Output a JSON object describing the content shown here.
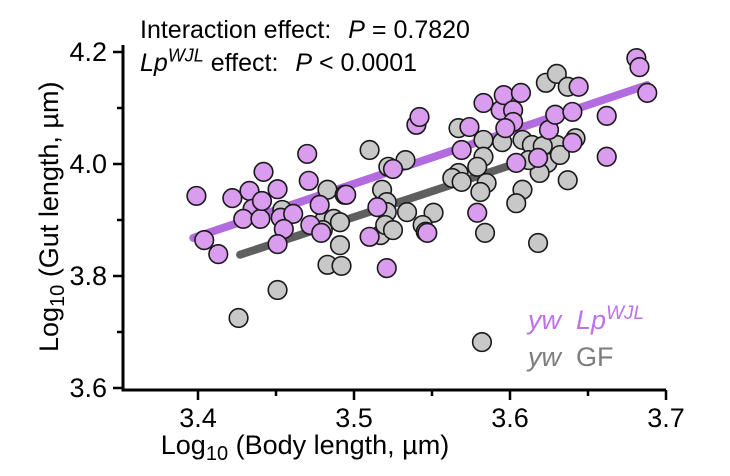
{
  "annotation": {
    "line1": {
      "pre": "Interaction effect:",
      "p": "P",
      "rest": "= 0.7820"
    },
    "line2": {
      "gene": "Lp",
      "sup": "WJL",
      "mid": "effect:",
      "p": "P",
      "rest": "< 0.0001"
    }
  },
  "legend": {
    "entries": [
      {
        "prefix": "yw",
        "main": "Lp",
        "sup": "WJL",
        "color": "#bd72ea"
      },
      {
        "prefix": "yw",
        "main": "GF",
        "sup": "",
        "color": "#7d7d7d"
      }
    ]
  },
  "x_axis_label": {
    "word": "Log",
    "sub": "10",
    "rest": " (Body length, µm)"
  },
  "y_axis_label": {
    "word": "Log",
    "sub": "10",
    "rest": " (Gut length, µm)"
  },
  "chart_data": {
    "type": "scatter",
    "title": "",
    "xlabel": "Log10 (Body length, µm)",
    "ylabel": "Log10 (Gut length, µm)",
    "xlim": [
      3.35,
      3.7
    ],
    "ylim": [
      3.6,
      4.2
    ],
    "x_major_ticks": [
      3.4,
      3.5,
      3.6,
      3.7
    ],
    "x_minor_ticks": [
      3.45,
      3.55,
      3.65
    ],
    "y_major_ticks": [
      3.6,
      3.8,
      4.0,
      4.2
    ],
    "y_minor_ticks": [
      3.7,
      3.9,
      4.1
    ],
    "grid": false,
    "legend_position": "lower right",
    "stats": {
      "interaction_effect_p": "0.7820",
      "lpwjl_effect_p": "< 0.0001"
    },
    "series": [
      {
        "name": "yw LpWJL",
        "marker_fill": "#d99cee",
        "marker_edge": "#1a1a1a",
        "line_color": "#b26ce0",
        "trend": {
          "x1": 3.397,
          "y1": 3.868,
          "x2": 3.688,
          "y2": 4.141
        },
        "points": [
          [
            3.399,
            3.943
          ],
          [
            3.404,
            3.864
          ],
          [
            3.413,
            3.839
          ],
          [
            3.422,
            3.939
          ],
          [
            3.433,
            3.952
          ],
          [
            3.442,
            3.986
          ],
          [
            3.435,
            3.92
          ],
          [
            3.429,
            3.902
          ],
          [
            3.44,
            3.902
          ],
          [
            3.451,
            3.955
          ],
          [
            3.441,
            3.934
          ],
          [
            3.453,
            3.904
          ],
          [
            3.461,
            3.911
          ],
          [
            3.455,
            3.884
          ],
          [
            3.451,
            3.857
          ],
          [
            3.47,
            4.018
          ],
          [
            3.471,
            3.97
          ],
          [
            3.478,
            3.927
          ],
          [
            3.472,
            3.891
          ],
          [
            3.479,
            3.877
          ],
          [
            3.495,
            3.945
          ],
          [
            3.515,
            3.923
          ],
          [
            3.51,
            3.87
          ],
          [
            3.521,
            3.814
          ],
          [
            3.525,
            3.991
          ],
          [
            3.54,
            4.07
          ],
          [
            3.542,
            4.084
          ],
          [
            3.547,
            3.877
          ],
          [
            3.569,
            4.025
          ],
          [
            3.574,
            4.066
          ],
          [
            3.579,
            3.913
          ],
          [
            3.583,
            4.109
          ],
          [
            3.594,
            4.096
          ],
          [
            3.596,
            4.123
          ],
          [
            3.602,
            4.096
          ],
          [
            3.602,
            4.075
          ],
          [
            3.607,
            4.127
          ],
          [
            3.597,
            4.064
          ],
          [
            3.604,
            4.002
          ],
          [
            3.618,
            4.011
          ],
          [
            3.625,
            4.061
          ],
          [
            3.629,
            4.088
          ],
          [
            3.64,
            4.093
          ],
          [
            3.64,
            4.038
          ],
          [
            3.644,
            4.138
          ],
          [
            3.662,
            4.086
          ],
          [
            3.662,
            4.013
          ],
          [
            3.681,
            4.189
          ],
          [
            3.683,
            4.173
          ],
          [
            3.688,
            4.127
          ]
        ]
      },
      {
        "name": "yw GF",
        "marker_fill": "#c8c8c8",
        "marker_edge": "#1a1a1a",
        "line_color": "#5f5f5f",
        "trend": {
          "x1": 3.427,
          "y1": 3.838,
          "x2": 3.642,
          "y2": 4.036
        },
        "points": [
          [
            3.454,
            3.918
          ],
          [
            3.483,
            3.954
          ],
          [
            3.494,
            3.945
          ],
          [
            3.481,
            3.9
          ],
          [
            3.487,
            3.902
          ],
          [
            3.48,
            3.882
          ],
          [
            3.491,
            3.896
          ],
          [
            3.491,
            3.855
          ],
          [
            3.483,
            3.82
          ],
          [
            3.492,
            3.818
          ],
          [
            3.51,
            4.025
          ],
          [
            3.522,
            3.995
          ],
          [
            3.533,
            4.007
          ],
          [
            3.518,
            3.954
          ],
          [
            3.521,
            3.932
          ],
          [
            3.521,
            3.914
          ],
          [
            3.534,
            3.914
          ],
          [
            3.551,
            3.913
          ],
          [
            3.517,
            3.873
          ],
          [
            3.52,
            3.891
          ],
          [
            3.525,
            3.882
          ],
          [
            3.544,
            3.891
          ],
          [
            3.546,
            3.879
          ],
          [
            3.567,
            4.064
          ],
          [
            3.583,
            4.043
          ],
          [
            3.595,
            4.039
          ],
          [
            3.608,
            4.043
          ],
          [
            3.614,
            4.034
          ],
          [
            3.583,
            4.013
          ],
          [
            3.567,
            3.984
          ],
          [
            3.563,
            3.975
          ],
          [
            3.569,
            3.968
          ],
          [
            3.579,
            3.995
          ],
          [
            3.585,
            3.966
          ],
          [
            3.581,
            3.95
          ],
          [
            3.608,
            3.954
          ],
          [
            3.604,
            3.93
          ],
          [
            3.584,
            3.877
          ],
          [
            3.618,
            3.859
          ],
          [
            3.451,
            3.775
          ],
          [
            3.426,
            3.725
          ],
          [
            3.623,
            4.145
          ],
          [
            3.63,
            4.161
          ],
          [
            3.637,
            4.138
          ],
          [
            3.642,
            4.046
          ],
          [
            3.63,
            4.034
          ],
          [
            3.621,
            4.032
          ],
          [
            3.624,
            4.002
          ],
          [
            3.632,
            4.016
          ],
          [
            3.619,
            3.984
          ],
          [
            3.637,
            3.971
          ],
          [
            3.612,
            4.007
          ],
          [
            3.582,
            3.682
          ]
        ]
      }
    ]
  }
}
